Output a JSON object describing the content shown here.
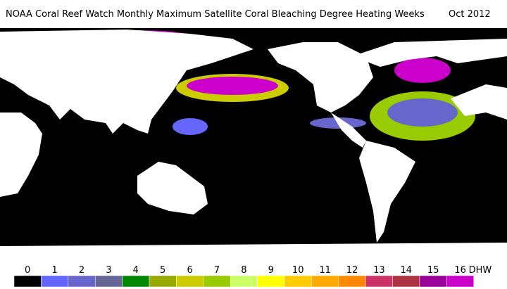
{
  "header": {
    "title": "NOAA Coral Reef Watch Monthly Maximum Satellite Coral Bleaching Degree Heating Weeks",
    "date": "Oct 2012"
  },
  "colorbar": {
    "labels": [
      0,
      1,
      2,
      3,
      4,
      5,
      6,
      7,
      8,
      9,
      10,
      11,
      12,
      13,
      14,
      15,
      16
    ],
    "unit": "DHW",
    "colors": [
      "#000000",
      "#6666ff",
      "#6666cc",
      "#666699",
      "#008800",
      "#99aa00",
      "#cccc00",
      "#99cc00",
      "#ccff66",
      "#ffff00",
      "#ffcc00",
      "#ffaa00",
      "#ff8800",
      "#cc3366",
      "#aa3344",
      "#990099",
      "#cc00cc"
    ]
  }
}
